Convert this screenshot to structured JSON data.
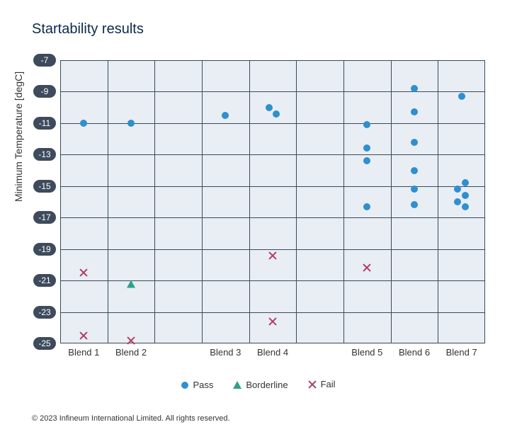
{
  "chart": {
    "type": "scatter-categorical",
    "title": "Startability results",
    "ylabel": "Minimum Temperature [degC]",
    "background_color": "#e8eef4",
    "grid_color": "#3a4a5a",
    "border_color": "#3a4a5a",
    "tick_pill_bg": "#3d4b5c",
    "tick_pill_fg": "#ffffff",
    "title_color": "#0a2b4c",
    "title_fontsize": 20,
    "label_fontsize": 13,
    "ylim": [
      -25,
      -7
    ],
    "yticks": [
      -7,
      -9,
      -11,
      -13,
      -15,
      -17,
      -19,
      -21,
      -23,
      -25
    ],
    "x_slots": 9,
    "x_categories": [
      {
        "slot": 1,
        "label": "Blend 1"
      },
      {
        "slot": 2,
        "label": "Blend 2"
      },
      {
        "slot": 4,
        "label": "Blend 3"
      },
      {
        "slot": 5,
        "label": "Blend 4"
      },
      {
        "slot": 7,
        "label": "Blend 5"
      },
      {
        "slot": 8,
        "label": "Blend 6"
      },
      {
        "slot": 9,
        "label": "Blend 7"
      }
    ],
    "series": {
      "pass": {
        "label": "Pass",
        "marker": "circle",
        "color": "#2f8fcf",
        "size": 10
      },
      "borderline": {
        "label": "Borderline",
        "marker": "triangle",
        "color": "#2fa08a",
        "size": 12
      },
      "fail": {
        "label": "Fail",
        "marker": "x",
        "color": "#b53a63",
        "size": 12
      }
    },
    "points": [
      {
        "slot": 1,
        "y": -11.0,
        "series": "pass"
      },
      {
        "slot": 1,
        "y": -20.5,
        "series": "fail"
      },
      {
        "slot": 1,
        "y": -24.5,
        "series": "fail"
      },
      {
        "slot": 2,
        "y": -11.0,
        "series": "pass"
      },
      {
        "slot": 2,
        "y": -21.2,
        "series": "borderline"
      },
      {
        "slot": 2,
        "y": -24.8,
        "series": "fail"
      },
      {
        "slot": 4,
        "y": -10.5,
        "series": "pass"
      },
      {
        "slot": 5,
        "y": -10.0,
        "series": "pass",
        "dx": -0.07
      },
      {
        "slot": 5,
        "y": -10.4,
        "series": "pass",
        "dx": 0.07
      },
      {
        "slot": 5,
        "y": -19.4,
        "series": "fail"
      },
      {
        "slot": 5,
        "y": -23.6,
        "series": "fail"
      },
      {
        "slot": 7,
        "y": -11.1,
        "series": "pass"
      },
      {
        "slot": 7,
        "y": -12.6,
        "series": "pass"
      },
      {
        "slot": 7,
        "y": -13.4,
        "series": "pass"
      },
      {
        "slot": 7,
        "y": -16.3,
        "series": "pass"
      },
      {
        "slot": 7,
        "y": -20.2,
        "series": "fail"
      },
      {
        "slot": 8,
        "y": -8.8,
        "series": "pass"
      },
      {
        "slot": 8,
        "y": -10.3,
        "series": "pass"
      },
      {
        "slot": 8,
        "y": -12.2,
        "series": "pass"
      },
      {
        "slot": 8,
        "y": -14.0,
        "series": "pass"
      },
      {
        "slot": 8,
        "y": -15.2,
        "series": "pass"
      },
      {
        "slot": 8,
        "y": -16.2,
        "series": "pass"
      },
      {
        "slot": 9,
        "y": -9.3,
        "series": "pass"
      },
      {
        "slot": 9,
        "y": -14.8,
        "series": "pass",
        "dx": 0.08
      },
      {
        "slot": 9,
        "y": -15.2,
        "series": "pass",
        "dx": -0.08
      },
      {
        "slot": 9,
        "y": -15.6,
        "series": "pass",
        "dx": 0.08
      },
      {
        "slot": 9,
        "y": -16.0,
        "series": "pass",
        "dx": -0.08
      },
      {
        "slot": 9,
        "y": -16.3,
        "series": "pass",
        "dx": 0.08
      }
    ]
  },
  "legend_order": [
    "pass",
    "borderline",
    "fail"
  ],
  "copyright": "© 2023 Infineum International Limited. All rights reserved."
}
